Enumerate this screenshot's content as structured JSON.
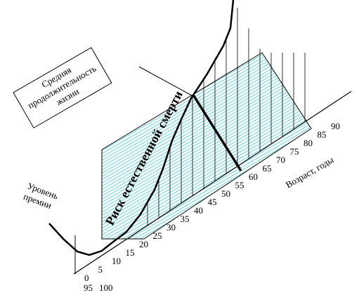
{
  "callout": {
    "lines": [
      "Средняя",
      "продолжительность",
      "жизни"
    ]
  },
  "y_axis_label": {
    "lines": [
      "Уровень",
      "премии"
    ]
  },
  "curve_label": "Риск естественной смерти",
  "x_axis_label": "Возраст, годы",
  "age_ticks": [
    "0",
    "5",
    "10",
    "15",
    "20",
    "25",
    "30",
    "35",
    "40",
    "45",
    "50",
    "55",
    "60",
    "65",
    "70",
    "75",
    "80",
    "85",
    "90",
    "95",
    "100"
  ]
}
